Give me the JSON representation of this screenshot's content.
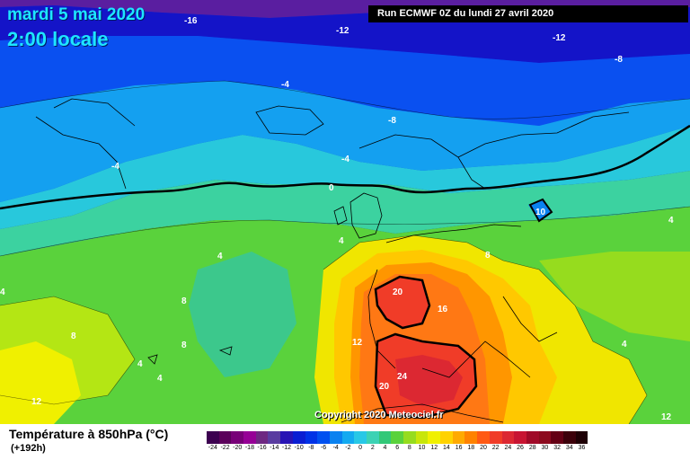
{
  "title": {
    "date": "mardi 5 mai 2020",
    "time": "2:00 locale"
  },
  "run": "Run ECMWF 0Z du lundi 27 avril 2020",
  "copyright": "Copyright 2020 Meteociel.fr",
  "legend": {
    "title": "Température à 850hPa (°C)",
    "subtitle": "(+192h)",
    "scale": [
      {
        "label": "-24",
        "color": "#3c0050"
      },
      {
        "label": "-22",
        "color": "#5a005a"
      },
      {
        "label": "-20",
        "color": "#780078"
      },
      {
        "label": "-18",
        "color": "#960096"
      },
      {
        "label": "-16",
        "color": "#6e2882"
      },
      {
        "label": "-14",
        "color": "#5a3ca0"
      },
      {
        "label": "-12",
        "color": "#2814b4"
      },
      {
        "label": "-10",
        "color": "#0a1ed2"
      },
      {
        "label": "-8",
        "color": "#0032e6"
      },
      {
        "label": "-6",
        "color": "#0050f0"
      },
      {
        "label": "-4",
        "color": "#0a82f0"
      },
      {
        "label": "-2",
        "color": "#14aaf0"
      },
      {
        "label": "0",
        "color": "#28c8e6"
      },
      {
        "label": "2",
        "color": "#3cd2b4"
      },
      {
        "label": "4",
        "color": "#32c878"
      },
      {
        "label": "6",
        "color": "#5ad23c"
      },
      {
        "label": "8",
        "color": "#96dc1e"
      },
      {
        "label": "10",
        "color": "#c8e60a"
      },
      {
        "label": "12",
        "color": "#f0f000"
      },
      {
        "label": "14",
        "color": "#ffd200"
      },
      {
        "label": "16",
        "color": "#ffaa00"
      },
      {
        "label": "18",
        "color": "#ff8200"
      },
      {
        "label": "20",
        "color": "#ff5a14"
      },
      {
        "label": "22",
        "color": "#f03c28"
      },
      {
        "label": "24",
        "color": "#dc2832"
      },
      {
        "label": "26",
        "color": "#c81432"
      },
      {
        "label": "28",
        "color": "#a00a28"
      },
      {
        "label": "30",
        "color": "#8c0a1e"
      },
      {
        "label": "32",
        "color": "#640014"
      },
      {
        "label": "34",
        "color": "#3c000a"
      },
      {
        "label": "36",
        "color": "#1e0005"
      }
    ]
  },
  "isotherm_labels": [
    "-16",
    "-12",
    "-12",
    "-8",
    "-4",
    "-8",
    "-4",
    "-4",
    "0",
    "10",
    "4",
    "4",
    "8",
    "8",
    "8",
    "4",
    "4",
    "4",
    "4",
    "8",
    "12",
    "12",
    "16",
    "20",
    "24",
    "20",
    "12",
    "4"
  ]
}
